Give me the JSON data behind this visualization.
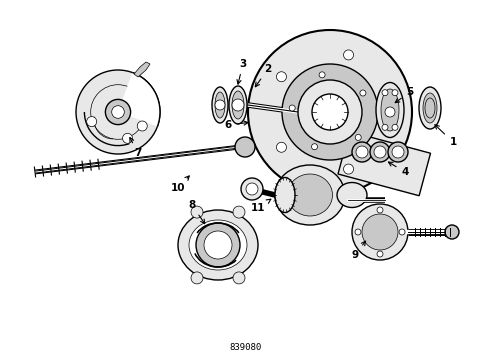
{
  "background_color": "#ffffff",
  "line_color": "#000000",
  "fig_width": 4.9,
  "fig_height": 3.6,
  "dpi": 100,
  "diagram_code_id": "839080",
  "text_color": "#000000",
  "part_label_fontsize": 7.5,
  "code_fontsize": 6.5,
  "lw_main": 1.0,
  "lw_thin": 0.5,
  "lw_thick": 1.5,
  "gray_light": "#e8e8e8",
  "gray_mid": "#c8c8c8",
  "gray_dark": "#a0a0a0"
}
